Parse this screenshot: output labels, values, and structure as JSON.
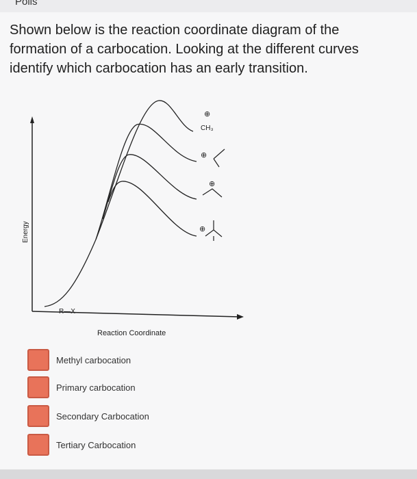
{
  "header": {
    "title": "Polls"
  },
  "question": {
    "text": "Shown below is the reaction coordinate diagram of the formation of a carbocation. Looking at the different curves identify which carbocation has an early transition."
  },
  "diagram": {
    "y_axis_label": "Energy",
    "x_axis_label": "Reaction Coordinate",
    "reactant_label": "R—X",
    "methyl_label": "CH₃",
    "charge_symbols": [
      "⊕",
      "⊕",
      "⊕",
      "⊕"
    ]
  },
  "options": [
    "Methyl carbocation",
    "Primary carbocation",
    "Secondary Carbocation",
    "Tertiary Carbocation"
  ]
}
